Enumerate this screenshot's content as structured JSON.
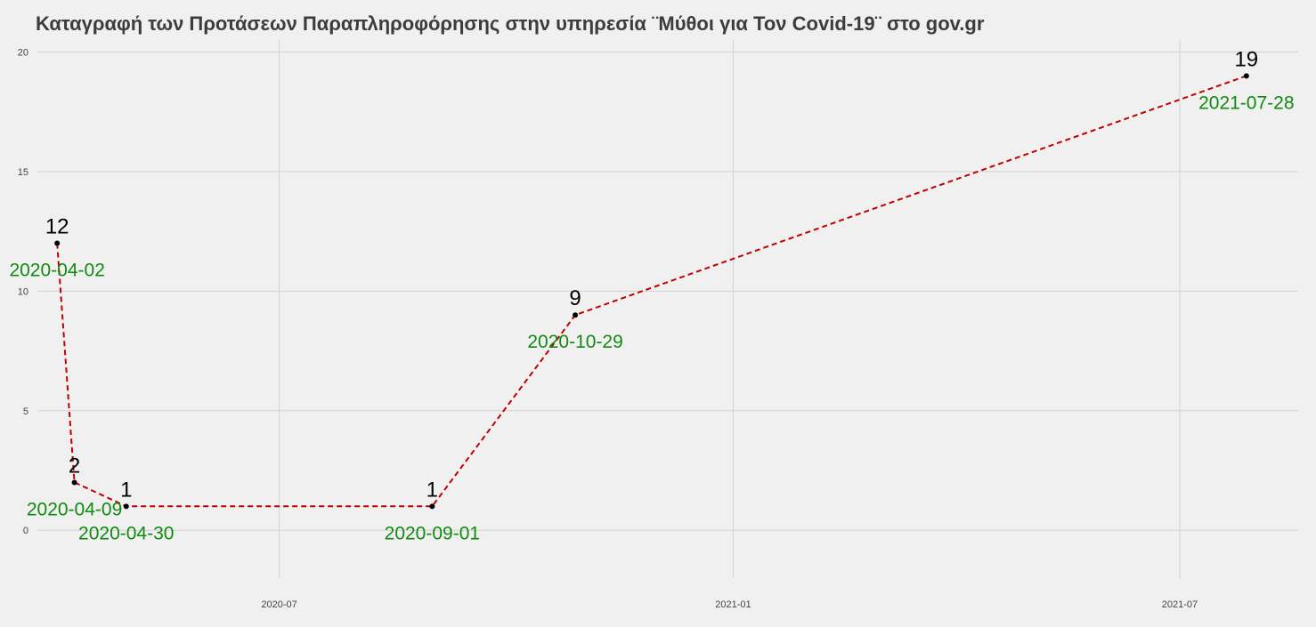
{
  "chart_data": {
    "type": "line",
    "title": "Καταγραφή των Προτάσεων Παραπληροφόρησης στην υπηρεσία ¨Μύθοι για Τον Covid-19¨ στο gov.gr",
    "xlabel": "",
    "ylabel": "",
    "x_axis": "date",
    "xlim": [
      "2020-03-25",
      "2021-08-18"
    ],
    "ylim": [
      -2,
      20.5
    ],
    "x_ticks": [
      {
        "date": "2020-07-01",
        "label": "2020-07"
      },
      {
        "date": "2021-01-01",
        "label": "2021-01"
      },
      {
        "date": "2021-07-01",
        "label": "2021-07"
      }
    ],
    "y_ticks": [
      0,
      5,
      10,
      15,
      20
    ],
    "grid": true,
    "line_style": "dashed",
    "line_color": "#c00000",
    "point_color": "#000000",
    "value_label_color": "#000000",
    "date_label_color": "#118a11",
    "points": [
      {
        "date": "2020-04-02",
        "value": 12,
        "value_label": "12",
        "date_label": "2020-04-02"
      },
      {
        "date": "2020-04-09",
        "value": 2,
        "value_label": "2",
        "date_label": "2020-04-09"
      },
      {
        "date": "2020-04-30",
        "value": 1,
        "value_label": "1",
        "date_label": "2020-04-30"
      },
      {
        "date": "2020-09-01",
        "value": 1,
        "value_label": "1",
        "date_label": "2020-09-01"
      },
      {
        "date": "2020-10-29",
        "value": 9,
        "value_label": "9",
        "date_label": "2020-10-29"
      },
      {
        "date": "2021-07-28",
        "value": 19,
        "value_label": "19",
        "date_label": "2021-07-28"
      }
    ]
  }
}
